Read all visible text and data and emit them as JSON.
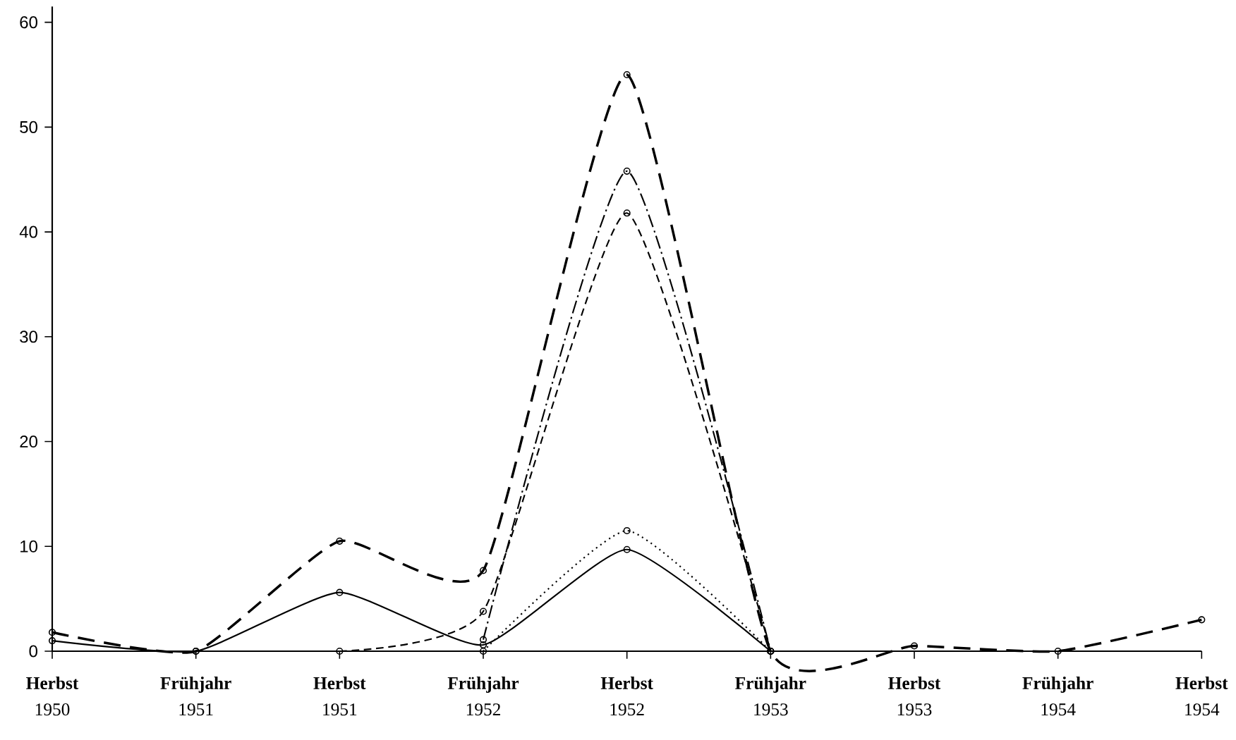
{
  "chart_data": {
    "type": "line",
    "categories": [
      "**Herbst** 1950",
      "**Frühjahr** 1951",
      "**Herbst** 1951",
      "**Frühjahr** 1952",
      "**Herbst** 1952",
      "**Frühjahr** 1953",
      "**Herbst** 1953",
      "**Frühjahr** 1954",
      "**Herbst** 1954"
    ],
    "series": [
      {
        "color": "#000000",
        "line_style": "dashed",
        "values": [
          1.8,
          0,
          10.5,
          7.7,
          55,
          0,
          0.5,
          0,
          3
        ]
      },
      {
        "color": "#000000",
        "line_style": "solid",
        "values": [
          1.0,
          0,
          5.6,
          0.6,
          9.7,
          0,
          null,
          null,
          null
        ]
      },
      {
        "color": "#000000",
        "line_style": "densely dashed",
        "values": [
          null,
          null,
          0,
          3.8,
          41.8,
          0,
          null,
          null,
          null
        ]
      },
      {
        "color": "#000000",
        "line_style": "dashdot",
        "values": [
          null,
          null,
          null,
          1.1,
          45.8,
          0,
          null,
          null,
          null
        ]
      },
      {
        "color": "#000000",
        "line_style": "dotted",
        "values": [
          null,
          null,
          null,
          0,
          11.5,
          0,
          null,
          null,
          null
        ]
      }
    ],
    "ylim": [
      0,
      61.5
    ],
    "yticks": [
      0,
      10,
      20,
      30,
      40,
      50,
      60
    ],
    "marker": "circle",
    "grid": false
  }
}
